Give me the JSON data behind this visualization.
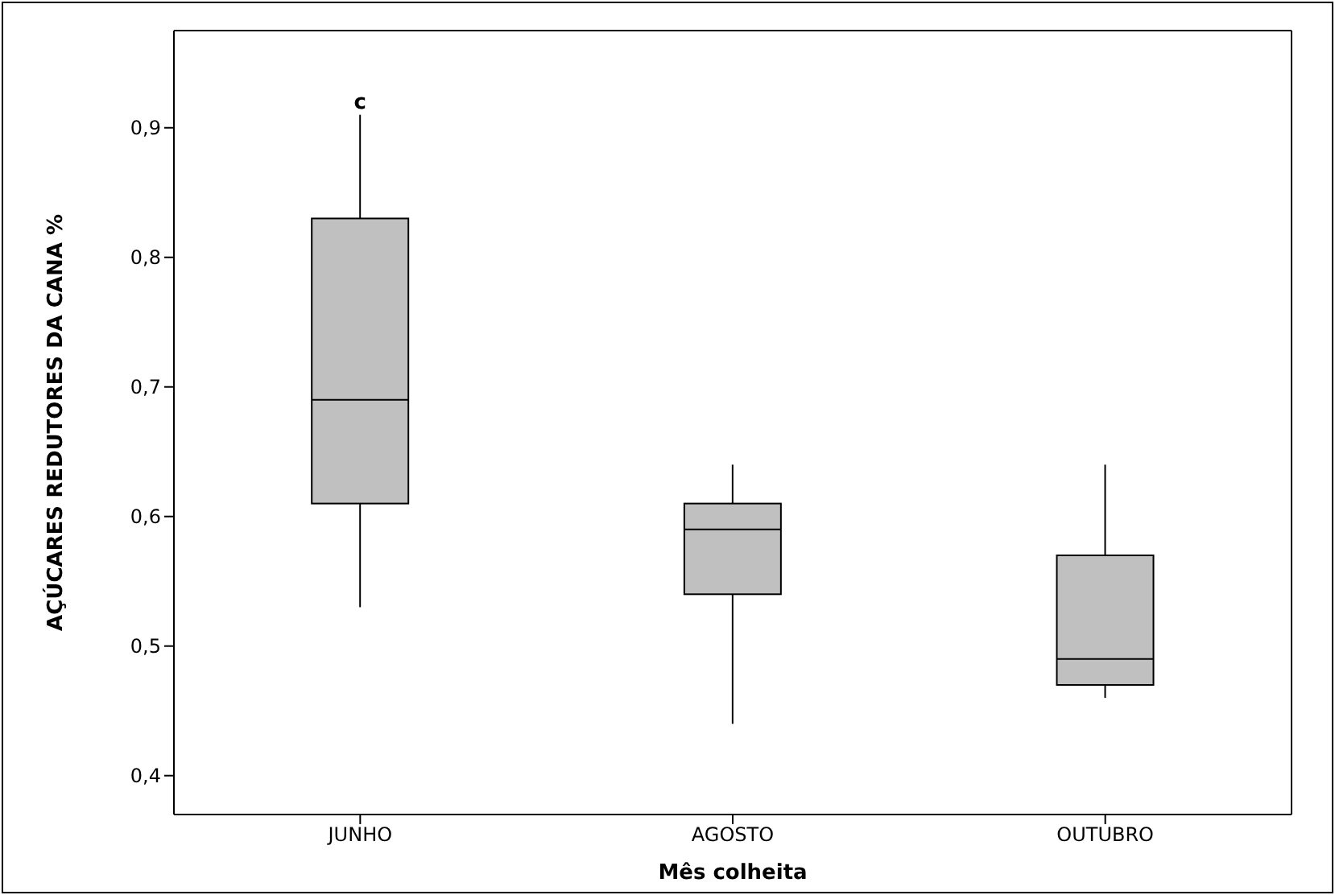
{
  "chart_data": {
    "type": "box",
    "xlabel": "Mês colheita",
    "ylabel": "AÇÚCARES REDUTORES DA CANA %",
    "categories": [
      "JUNHO",
      "AGOSTO",
      "OUTUBRO"
    ],
    "color": "#c0c0c0",
    "boxes": [
      {
        "low": 0.53,
        "q1": 0.61,
        "median": 0.69,
        "q3": 0.83,
        "high": 0.91
      },
      {
        "low": 0.44,
        "q1": 0.54,
        "median": 0.59,
        "q3": 0.61,
        "high": 0.64
      },
      {
        "low": 0.46,
        "q1": 0.47,
        "median": 0.49,
        "q3": 0.57,
        "high": 0.64
      }
    ],
    "ylim": [
      0.37,
      0.975
    ],
    "yticks": [
      {
        "value": 0.4,
        "label": "0,4"
      },
      {
        "value": 0.5,
        "label": "0,5"
      },
      {
        "value": 0.6,
        "label": "0,6"
      },
      {
        "value": 0.7,
        "label": "0,7"
      },
      {
        "value": 0.8,
        "label": "0,8"
      },
      {
        "value": 0.9,
        "label": "0,9"
      }
    ],
    "annotations": [
      {
        "text": "c",
        "x": "JUNHO",
        "y": 0.91
      }
    ],
    "grid": false
  }
}
